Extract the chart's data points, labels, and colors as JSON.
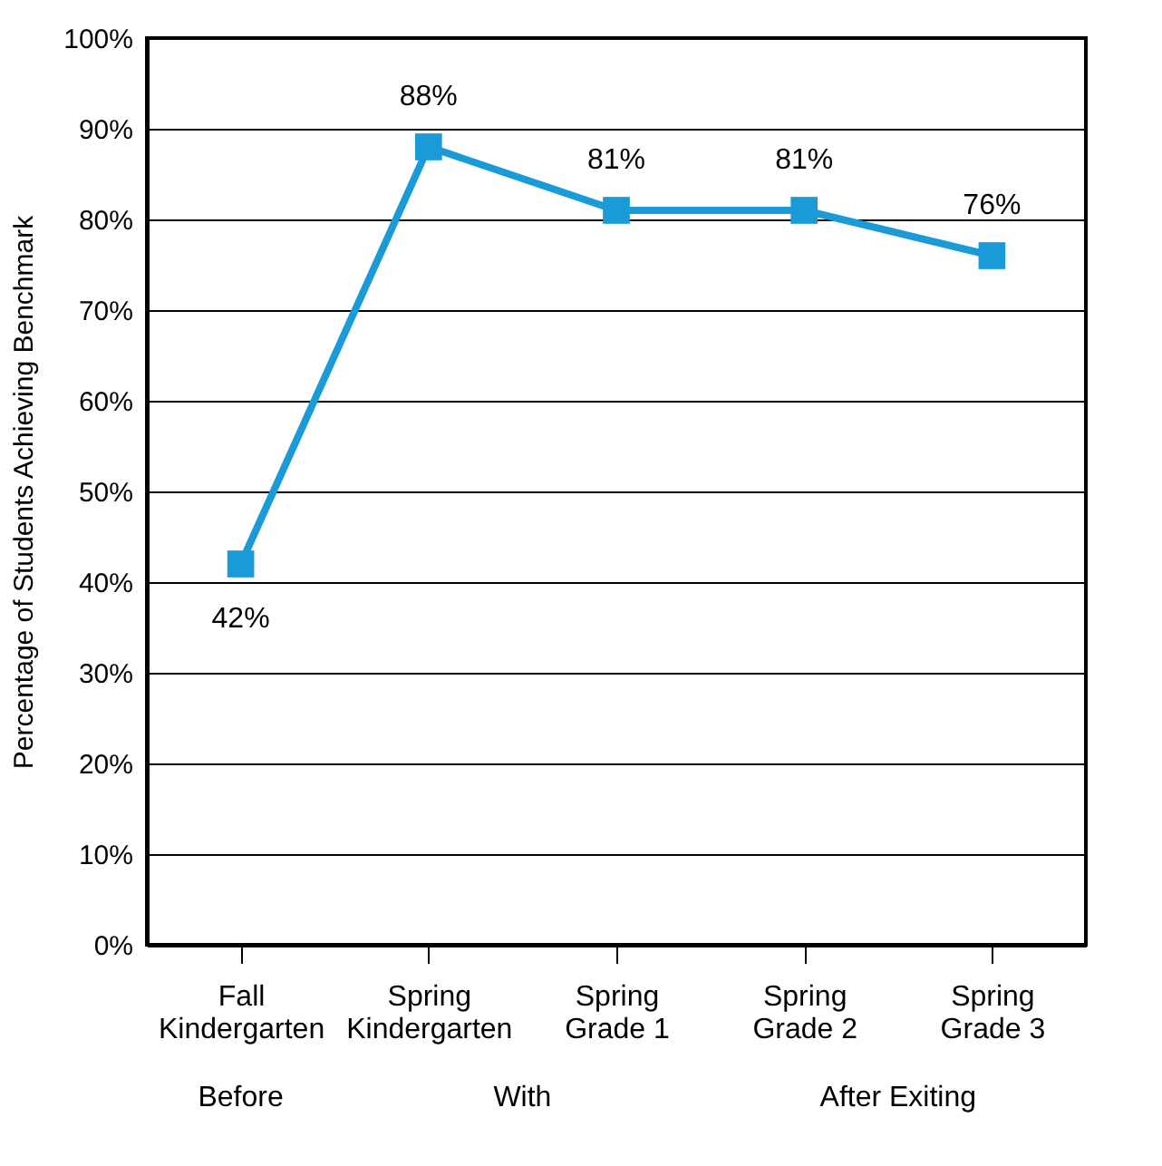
{
  "chart_data": {
    "type": "line",
    "ylabel": "Percentage of Students Achieving Benchmark",
    "categories": [
      "Fall Kindergarten",
      "Spring Kindergarten",
      "Spring Grade 1",
      "Spring Grade 2",
      "Spring Grade 3"
    ],
    "series": [
      {
        "color": "#1a9ad6",
        "values": [
          42,
          88,
          81,
          81,
          76
        ]
      }
    ],
    "ylim": [
      0,
      100
    ],
    "yticks": [
      {
        "value": 0,
        "label": "0%"
      },
      {
        "value": 10,
        "label": "10%"
      },
      {
        "value": 20,
        "label": "20%"
      },
      {
        "value": 30,
        "label": "30%"
      },
      {
        "value": 40,
        "label": "40%"
      },
      {
        "value": 50,
        "label": "50%"
      },
      {
        "value": 60,
        "label": "60%"
      },
      {
        "value": 70,
        "label": "70%"
      },
      {
        "value": 80,
        "label": "80%"
      },
      {
        "value": 90,
        "label": "90%"
      },
      {
        "value": 100,
        "label": "100%"
      }
    ],
    "value_labels": [
      "42%",
      "88%",
      "81%",
      "81%",
      "76%"
    ],
    "annotations": [
      "Before",
      "With",
      "After Exiting"
    ],
    "grid": "y",
    "marker": "square",
    "line_style": "solid"
  }
}
